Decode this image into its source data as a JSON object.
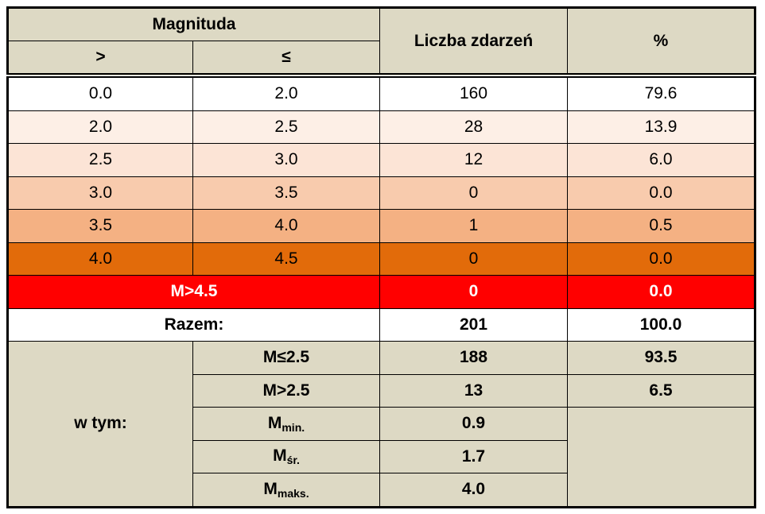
{
  "header": {
    "magnitude": "Magnituda",
    "gt": ">",
    "le": "≤",
    "count": "Liczba zdarzeń",
    "percent": "%"
  },
  "rows": [
    [
      "0.0",
      "2.0",
      "160",
      "79.6"
    ],
    [
      "2.0",
      "2.5",
      "28",
      "13.9"
    ],
    [
      "2.5",
      "3.0",
      "12",
      "6.0"
    ],
    [
      "3.0",
      "3.5",
      "0",
      "0.0"
    ],
    [
      "3.5",
      "4.0",
      "1",
      "0.5"
    ],
    [
      "4.0",
      "4.5",
      "0",
      "0.0"
    ]
  ],
  "over": {
    "label": "M>4.5",
    "count": "0",
    "percent": "0.0"
  },
  "total": {
    "label": "Razem:",
    "count": "201",
    "percent": "100.0"
  },
  "breakdown": {
    "label": "w tym:",
    "rows": [
      {
        "label": {
          "main": "M≤2.5"
        },
        "count": "188",
        "percent": "93.5"
      },
      {
        "label": {
          "main": "M>2.5"
        },
        "count": "13",
        "percent": "6.5"
      },
      {
        "label": {
          "main": "M",
          "sub": "min."
        },
        "count": "0.9"
      },
      {
        "label": {
          "main": "M",
          "sub": "śr."
        },
        "count": "1.7"
      },
      {
        "label": {
          "main": "M",
          "sub": "maks."
        },
        "count": "4.0"
      }
    ]
  }
}
